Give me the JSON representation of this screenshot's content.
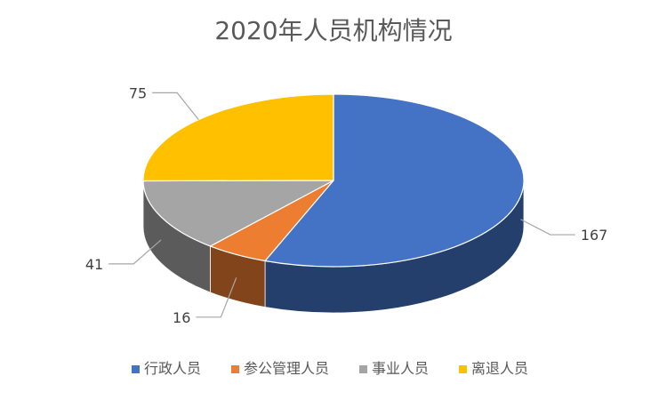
{
  "chart_data": {
    "type": "pie",
    "title": "2020年人员机构情况",
    "categories": [
      "行政人员",
      "参公管理人员",
      "事业人员",
      "离退人员"
    ],
    "values": [
      167,
      16,
      41,
      75
    ],
    "colors": [
      "#4472C4",
      "#ED7D31",
      "#A5A5A5",
      "#FFC000"
    ],
    "legend_position": "bottom",
    "style": "3d"
  }
}
